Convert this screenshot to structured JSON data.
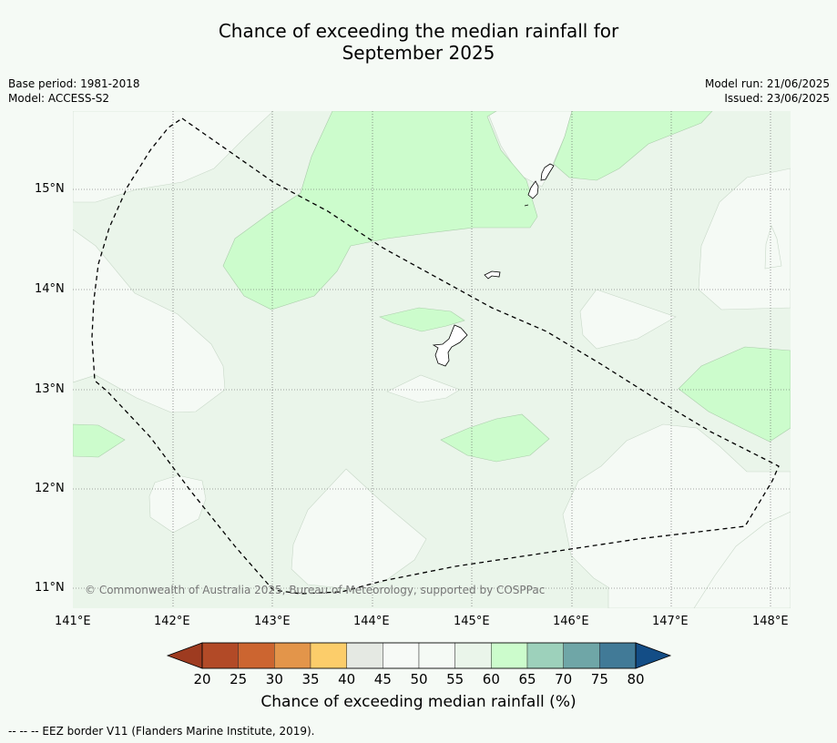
{
  "title": {
    "line1": "Chance of exceeding the median rainfall for",
    "line2": "September 2025"
  },
  "meta_left": {
    "base_period": "Base period: 1981-2018",
    "model": "Model: ACCESS-S2"
  },
  "meta_right": {
    "model_run": "Model run: 21/06/2025",
    "issued": "Issued: 23/06/2025"
  },
  "latitude_labels": [
    "15°N",
    "14°N",
    "13°N",
    "12°N",
    "11°N"
  ],
  "longitude_labels": [
    "141°E",
    "142°E",
    "143°E",
    "144°E",
    "145°E",
    "146°E",
    "147°E",
    "148°E"
  ],
  "copyright": "© Commonwealth of Australia 2025, Bureau of Meteorology, supported by COSPPac",
  "colorbar": {
    "title": "Chance of exceeding median rainfall (%)",
    "ticks": [
      "20",
      "25",
      "30",
      "35",
      "40",
      "45",
      "50",
      "55",
      "60",
      "65",
      "70",
      "75",
      "80"
    ],
    "low_extension_color": "#9e3b20",
    "high_extension_color": "#134d86",
    "colors": [
      "#b24a27",
      "#cc6530",
      "#e3954a",
      "#fccd6a",
      "#e5e9e3",
      "#f7faf7",
      "#f5faf5",
      "#eaf5ea",
      "#ccfccc",
      "#9dd1bb",
      "#6fa6a7",
      "#417a97"
    ]
  },
  "map_colors": {
    "band_50_55": "#f5faf5",
    "band_55_60": "#eaf5ea",
    "band_60_65": "#ccfccc",
    "eez_border": "#000000"
  },
  "footer": "--  --  -- EEZ border V11 (Flanders Marine Institute, 2019)."
}
